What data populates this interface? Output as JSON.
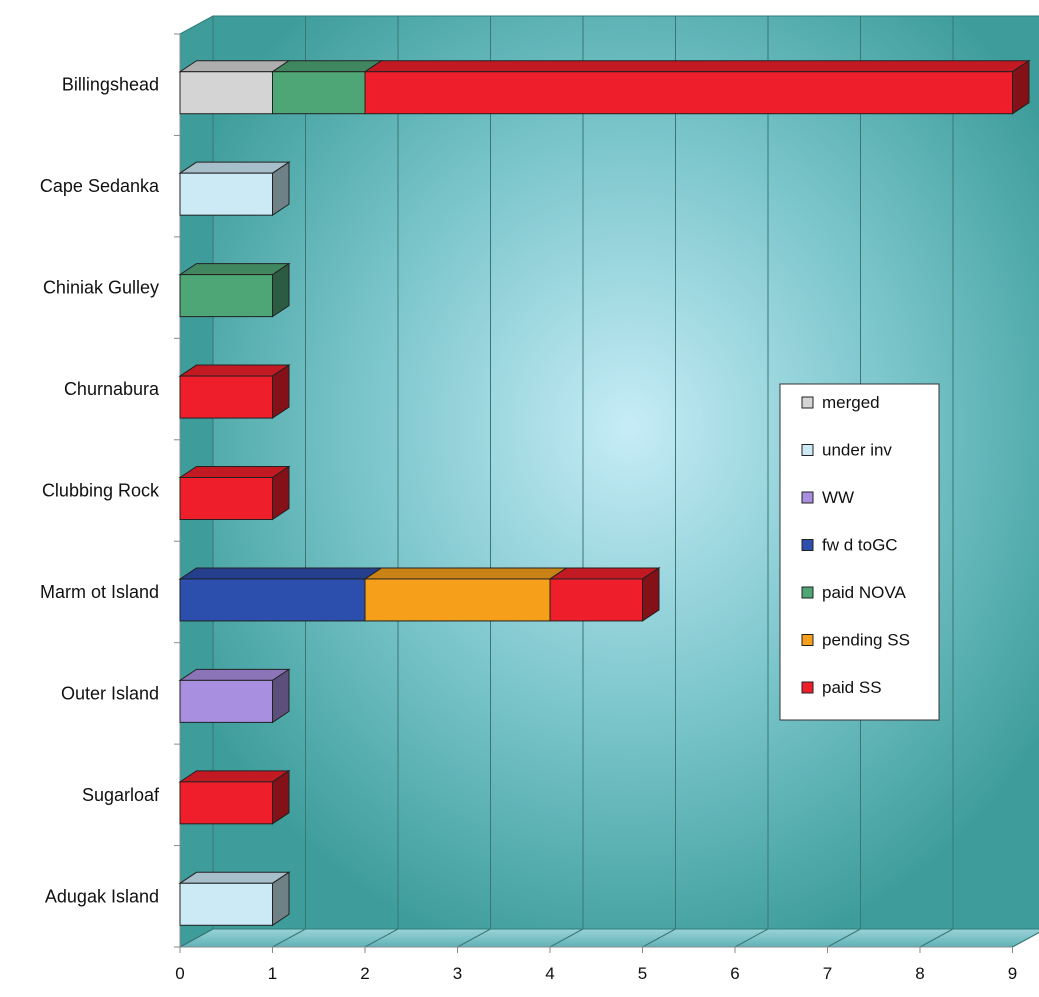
{
  "chart_data": {
    "type": "bar",
    "orientation": "horizontal",
    "stacked": true,
    "three_d": true,
    "categories": [
      "Billingshead",
      "Cape Sedanka",
      "Chiniak Gulley",
      "Churnabura",
      "Clubbing Rock",
      "Marm ot Island",
      "Outer Island",
      "Sugarloaf",
      "Adugak Island"
    ],
    "series": [
      {
        "name": "merged",
        "color": "#d4d4d4",
        "values": [
          1,
          0,
          0,
          0,
          0,
          0,
          0,
          0,
          0
        ]
      },
      {
        "name": "under inv",
        "color": "#cce9f6",
        "values": [
          0,
          1,
          0,
          0,
          0,
          0,
          0,
          0,
          1
        ]
      },
      {
        "name": "WW",
        "color": "#a98fe0",
        "values": [
          0,
          0,
          0,
          0,
          0,
          0,
          1,
          0,
          0
        ]
      },
      {
        "name": "fw d toGC",
        "color": "#2c4eac",
        "values": [
          0,
          0,
          0,
          0,
          0,
          2,
          0,
          0,
          0
        ]
      },
      {
        "name": "paid NOVA",
        "color": "#4ea575",
        "values": [
          1,
          0,
          1,
          0,
          0,
          0,
          0,
          0,
          0
        ]
      },
      {
        "name": "pending SS",
        "color": "#f59f1b",
        "values": [
          0,
          0,
          0,
          0,
          0,
          2,
          0,
          0,
          0
        ]
      },
      {
        "name": "paid SS",
        "color": "#ee1f2a",
        "values": [
          7,
          0,
          0,
          1,
          1,
          1,
          0,
          1,
          0
        ]
      }
    ],
    "xlim": [
      0,
      9
    ],
    "x_ticks": [
      "0",
      "1",
      "2",
      "3",
      "4",
      "5",
      "6",
      "7",
      "8",
      "9"
    ],
    "grid": true,
    "legend_position": "right",
    "wall_color": "#3e9d9b",
    "wall_glow_color": "#c6ecf7"
  }
}
